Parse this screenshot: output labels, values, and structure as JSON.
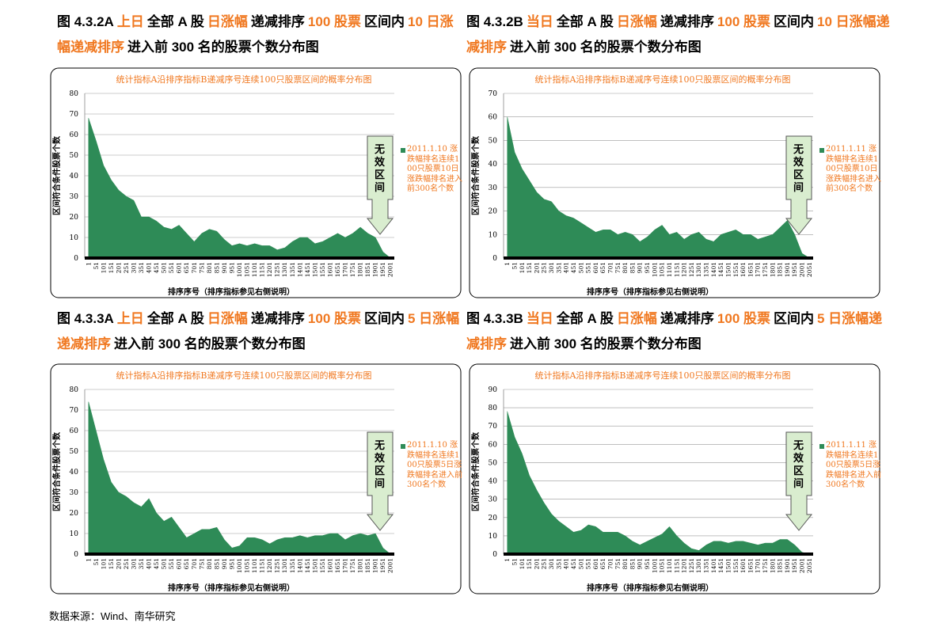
{
  "headings": [
    [
      {
        "text": "图 4.3.2A",
        "color": "#000000"
      },
      {
        "text": "上日",
        "color": "#f07820"
      },
      {
        "text": "全部 A 股",
        "color": "#000000"
      },
      {
        "text": "日涨幅",
        "color": "#f07820"
      },
      {
        "text": "递减排序",
        "color": "#000000"
      },
      {
        "text": "100 股票",
        "color": "#f07820"
      },
      {
        "text": "区间内",
        "color": "#000000"
      },
      {
        "text": "10 日涨幅递减排序",
        "color": "#f07820"
      },
      {
        "text": "进入前 300 名的股票个数分布图",
        "color": "#000000"
      }
    ],
    [
      {
        "text": "图 4.3.2B",
        "color": "#000000"
      },
      {
        "text": "当日",
        "color": "#f07820"
      },
      {
        "text": "全部 A 股",
        "color": "#000000"
      },
      {
        "text": "日涨幅",
        "color": "#f07820"
      },
      {
        "text": "递减排序",
        "color": "#000000"
      },
      {
        "text": "100 股票",
        "color": "#f07820"
      },
      {
        "text": "区间内",
        "color": "#000000"
      },
      {
        "text": "10 日涨幅递减排序",
        "color": "#f07820"
      },
      {
        "text": "进入前 300 名的股票个数分布图",
        "color": "#000000"
      }
    ],
    [
      {
        "text": "图 4.3.3A",
        "color": "#000000"
      },
      {
        "text": "上日",
        "color": "#f07820"
      },
      {
        "text": "全部 A 股",
        "color": "#000000"
      },
      {
        "text": "日涨幅",
        "color": "#f07820"
      },
      {
        "text": "递减排序",
        "color": "#000000"
      },
      {
        "text": "100 股票",
        "color": "#f07820"
      },
      {
        "text": "区间内",
        "color": "#000000"
      },
      {
        "text": "5 日涨幅递减排序",
        "color": "#f07820"
      },
      {
        "text": "进入前 300 名的股票个数分布图",
        "color": "#000000"
      }
    ],
    [
      {
        "text": "图 4.3.3B",
        "color": "#000000"
      },
      {
        "text": "当日",
        "color": "#f07820"
      },
      {
        "text": "全部 A 股",
        "color": "#000000"
      },
      {
        "text": "日涨幅",
        "color": "#f07820"
      },
      {
        "text": "递减排序",
        "color": "#000000"
      },
      {
        "text": "100 股票",
        "color": "#f07820"
      },
      {
        "text": "区间内",
        "color": "#000000"
      },
      {
        "text": "5 日涨幅递减排序",
        "color": "#f07820"
      },
      {
        "text": "进入前 300 名的股票个数分布图",
        "color": "#000000"
      }
    ]
  ],
  "source": "数据来源：Wind、南华研究",
  "chart_data": [
    {
      "type": "area",
      "title": "统计指标A沿排序指标B递减序号连续100只股票区间的概率分布图",
      "x_label": "排序序号（排序指标参见右侧说明）",
      "y_label": "区间符合条件股票个数",
      "annotation": "无效区间",
      "x": [
        1,
        51,
        101,
        151,
        201,
        251,
        301,
        351,
        401,
        451,
        501,
        551,
        601,
        651,
        701,
        751,
        801,
        851,
        901,
        951,
        1001,
        1051,
        1101,
        1151,
        1201,
        1251,
        1301,
        1351,
        1401,
        1451,
        1501,
        1551,
        1601,
        1651,
        1701,
        1751,
        1801,
        1851,
        1901,
        1951,
        2001
      ],
      "series": [
        {
          "name": "2011.1.10 涨跌幅排名连续100只股票10日涨跌幅排名进入前300名个数",
          "color": "#2e8b57",
          "values": [
            68,
            57,
            45,
            38,
            33,
            30,
            28,
            20,
            20,
            18,
            15,
            14,
            16,
            12,
            8,
            12,
            14,
            13,
            9,
            6,
            7,
            6,
            7,
            6,
            6,
            4,
            5,
            8,
            10,
            10,
            7,
            8,
            10,
            12,
            10,
            12,
            15,
            12,
            10,
            3,
            0
          ]
        }
      ],
      "xlim": [
        -24,
        2026
      ],
      "xticks": [
        1,
        51,
        101,
        151,
        201,
        251,
        301,
        351,
        401,
        451,
        501,
        551,
        601,
        651,
        701,
        751,
        801,
        851,
        901,
        951,
        1001,
        1051,
        1101,
        1151,
        1201,
        1251,
        1301,
        1351,
        1401,
        1451,
        1501,
        1551,
        1601,
        1651,
        1701,
        1751,
        1801,
        1851,
        1901,
        1951,
        2001
      ],
      "ylim": [
        0,
        80
      ],
      "yticks": [
        0,
        10,
        20,
        30,
        40,
        50,
        60,
        70,
        80
      ],
      "grid": true
    },
    {
      "type": "area",
      "title": "统计指标A沿排序指标B递减序号连续100只股票区间的概率分布图",
      "x_label": "排序序号（排序指标参见右侧说明）",
      "y_label": "区间符合条件股票个数",
      "annotation": "无效区间",
      "x": [
        1,
        51,
        101,
        151,
        201,
        251,
        301,
        351,
        401,
        451,
        501,
        551,
        601,
        651,
        701,
        751,
        801,
        851,
        901,
        951,
        1001,
        1051,
        1101,
        1151,
        1201,
        1251,
        1301,
        1351,
        1401,
        1451,
        1501,
        1551,
        1601,
        1651,
        1701,
        1751,
        1801,
        1851,
        1901,
        1951,
        2001,
        2051
      ],
      "series": [
        {
          "name": "2011.1.11 涨跌幅排名连续100只股票10日涨跌幅排名进入前300名个数",
          "color": "#2e8b57",
          "values": [
            60,
            45,
            38,
            33,
            28,
            25,
            24,
            20,
            18,
            17,
            15,
            13,
            11,
            12,
            12,
            10,
            11,
            10,
            7,
            9,
            12,
            14,
            10,
            11,
            8,
            10,
            11,
            8,
            7,
            10,
            11,
            12,
            10,
            10,
            8,
            9,
            10,
            13,
            16,
            10,
            2,
            0
          ]
        }
      ],
      "xlim": [
        -24,
        2076
      ],
      "xticks": [
        1,
        51,
        101,
        151,
        201,
        251,
        301,
        351,
        401,
        451,
        501,
        551,
        601,
        651,
        701,
        751,
        801,
        851,
        901,
        951,
        1001,
        1051,
        1101,
        1151,
        1201,
        1251,
        1301,
        1351,
        1401,
        1451,
        1501,
        1551,
        1601,
        1651,
        1701,
        1751,
        1801,
        1851,
        1901,
        1951,
        2001,
        2051
      ],
      "ylim": [
        0,
        70
      ],
      "yticks": [
        0,
        10,
        20,
        30,
        40,
        50,
        60,
        70
      ],
      "grid": true
    },
    {
      "type": "area",
      "title": "统计指标A沿排序指标B递减序号连续100只股票区间的概率分布图",
      "x_label": "排序序号（排序指标参见右侧说明）",
      "y_label": "区间符合条件股票个数",
      "annotation": "无效区间",
      "x": [
        1,
        51,
        101,
        151,
        201,
        251,
        301,
        351,
        401,
        451,
        501,
        551,
        601,
        651,
        701,
        751,
        801,
        851,
        901,
        951,
        1001,
        1051,
        1101,
        1151,
        1201,
        1251,
        1301,
        1351,
        1401,
        1451,
        1501,
        1551,
        1601,
        1651,
        1701,
        1751,
        1801,
        1851,
        1901,
        1951,
        2001
      ],
      "series": [
        {
          "name": "2011.1.10 涨跌幅排名连续100只股票5日涨跌幅排名进入前300名个数",
          "color": "#2e8b57",
          "values": [
            74,
            60,
            46,
            35,
            30,
            28,
            25,
            23,
            27,
            20,
            16,
            18,
            13,
            8,
            10,
            12,
            12,
            13,
            7,
            3,
            4,
            8,
            8,
            7,
            5,
            7,
            8,
            8,
            9,
            8,
            9,
            9,
            10,
            10,
            7,
            9,
            10,
            9,
            10,
            3,
            0
          ]
        }
      ],
      "xlim": [
        -24,
        2026
      ],
      "xticks": [
        1,
        51,
        101,
        151,
        201,
        251,
        301,
        351,
        401,
        451,
        501,
        551,
        601,
        651,
        701,
        751,
        801,
        851,
        901,
        951,
        1001,
        1051,
        1101,
        1151,
        1201,
        1251,
        1301,
        1351,
        1401,
        1451,
        1501,
        1551,
        1601,
        1651,
        1701,
        1751,
        1801,
        1851,
        1901,
        1951,
        2001
      ],
      "ylim": [
        0,
        80
      ],
      "yticks": [
        0,
        10,
        20,
        30,
        40,
        50,
        60,
        70,
        80
      ],
      "grid": true
    },
    {
      "type": "area",
      "title": "统计指标A沿排序指标B递减序号连续100只股票区间的概率分布图",
      "x_label": "排序序号（排序指标参见右侧说明）",
      "y_label": "区间符合条件股票个数",
      "annotation": "无效区间",
      "x": [
        1,
        51,
        101,
        151,
        201,
        251,
        301,
        351,
        401,
        451,
        501,
        551,
        601,
        651,
        701,
        751,
        801,
        851,
        901,
        951,
        1001,
        1051,
        1101,
        1151,
        1201,
        1251,
        1301,
        1351,
        1401,
        1451,
        1501,
        1551,
        1601,
        1651,
        1701,
        1751,
        1801,
        1851,
        1901,
        1951,
        2001,
        2051
      ],
      "series": [
        {
          "name": "2011.1.11 涨跌幅排名连续100只股票5日涨跌幅排名进入前300名个数",
          "color": "#2e8b57",
          "values": [
            78,
            64,
            55,
            43,
            35,
            28,
            22,
            18,
            15,
            12,
            13,
            16,
            15,
            12,
            12,
            12,
            10,
            7,
            5,
            7,
            9,
            11,
            15,
            10,
            6,
            3,
            2,
            5,
            7,
            7,
            6,
            7,
            7,
            6,
            5,
            6,
            6,
            8,
            8,
            5,
            1,
            0
          ]
        }
      ],
      "xlim": [
        -24,
        2076
      ],
      "xticks": [
        1,
        51,
        101,
        151,
        201,
        251,
        301,
        351,
        401,
        451,
        501,
        551,
        601,
        651,
        701,
        751,
        801,
        851,
        901,
        951,
        1001,
        1051,
        1101,
        1151,
        1201,
        1251,
        1301,
        1351,
        1401,
        1451,
        1501,
        1551,
        1601,
        1651,
        1701,
        1751,
        1801,
        1851,
        1901,
        1951,
        2001,
        2051
      ],
      "ylim": [
        0,
        90
      ],
      "yticks": [
        0,
        10,
        20,
        30,
        40,
        50,
        60,
        70,
        80,
        90
      ],
      "grid": true
    }
  ]
}
